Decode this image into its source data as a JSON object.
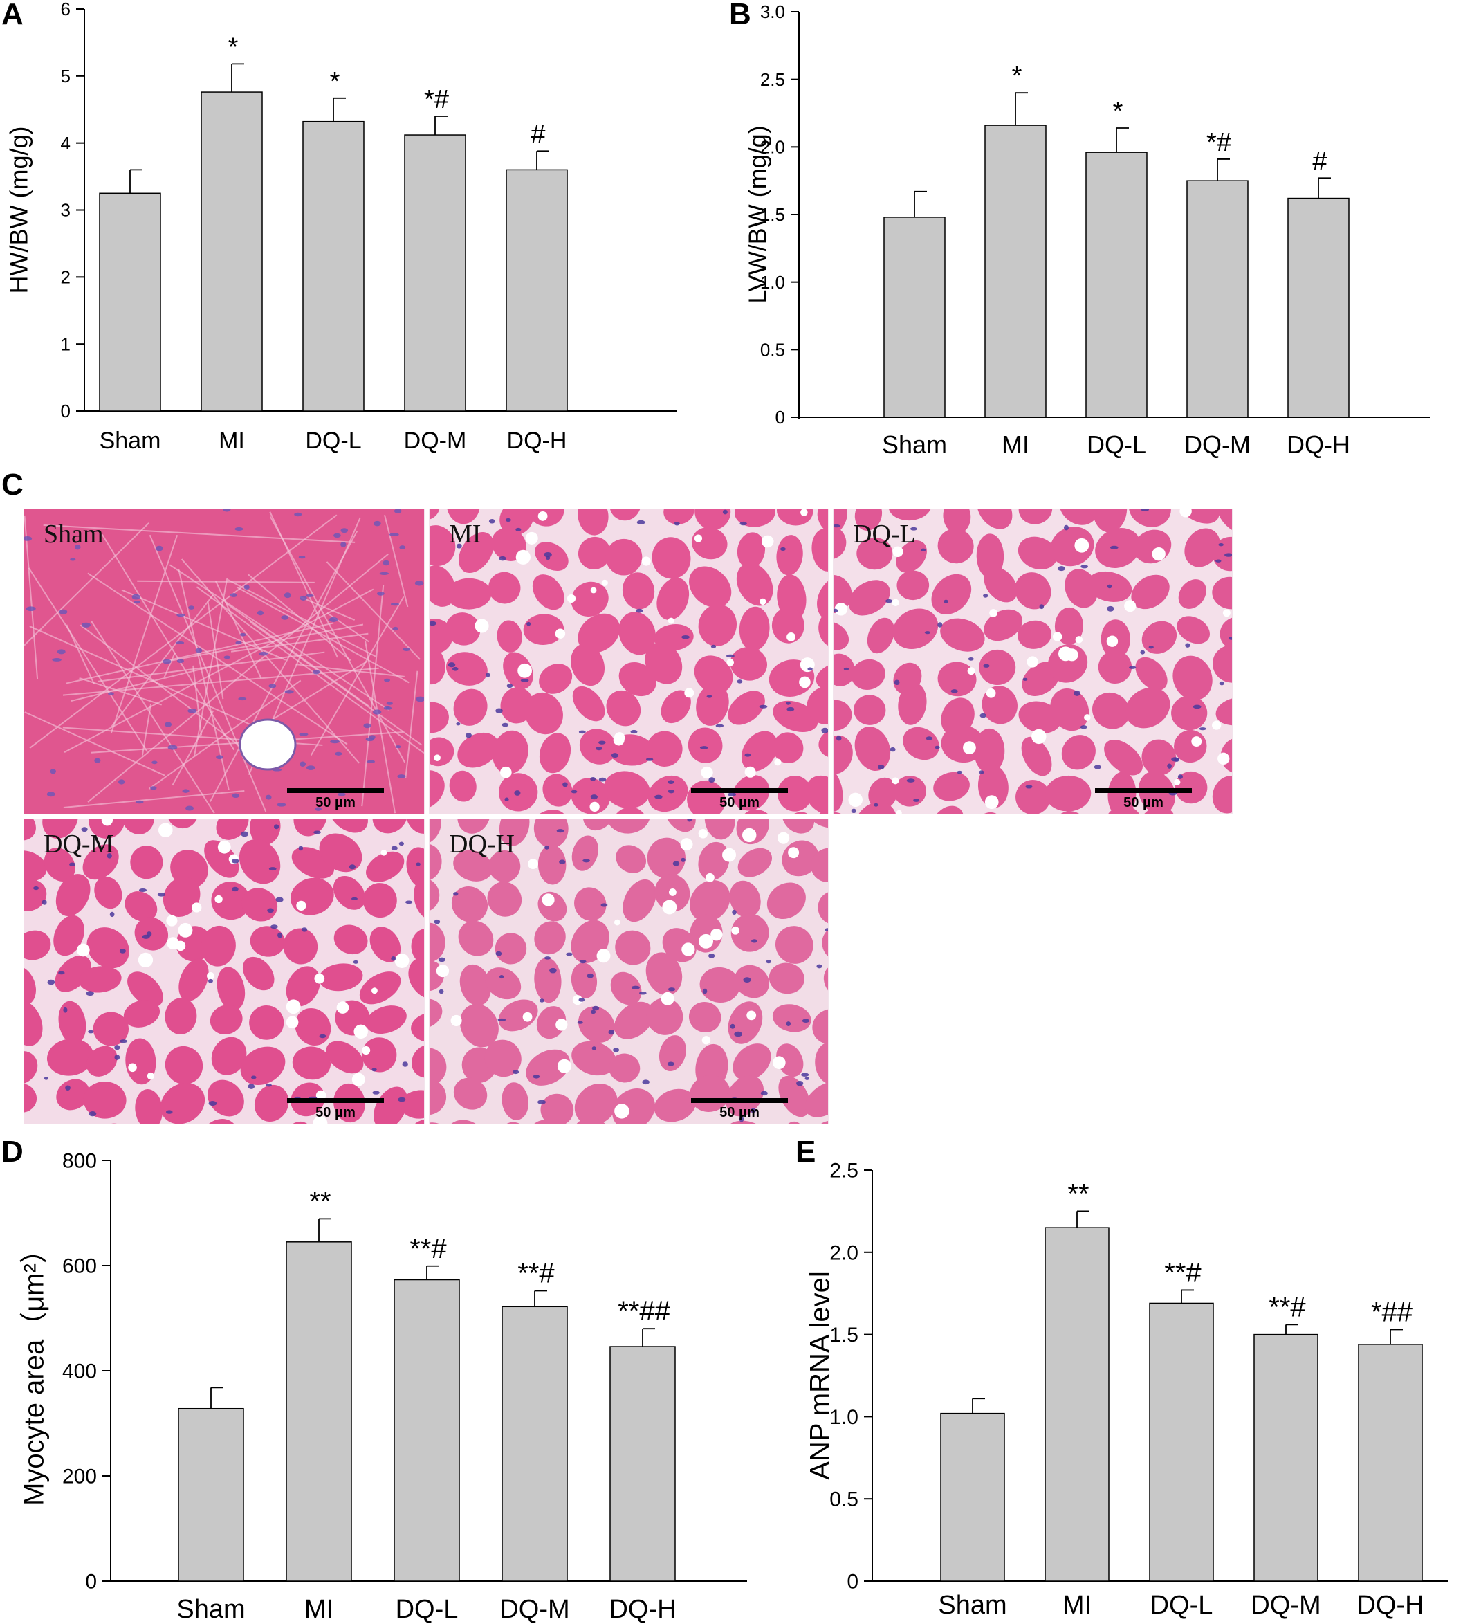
{
  "panels": {
    "A": {
      "letter": "A"
    },
    "B": {
      "letter": "B"
    },
    "C": {
      "letter": "C"
    },
    "D": {
      "letter": "D"
    },
    "E": {
      "letter": "E"
    }
  },
  "chart_data": [
    {
      "id": "A",
      "type": "bar",
      "categories": [
        "Sham",
        "MI",
        "DQ-L",
        "DQ-M",
        "DQ-H"
      ],
      "values": [
        3.25,
        4.76,
        4.32,
        4.12,
        3.6
      ],
      "errors": [
        0.35,
        0.42,
        0.35,
        0.28,
        0.28
      ],
      "annotations": [
        "",
        "*",
        "*",
        "*#",
        "#"
      ],
      "ylabel": "HW/BW (mg/g)",
      "ylim": [
        0,
        6
      ],
      "yticks": [
        "0",
        "1",
        "2",
        "3",
        "4",
        "5",
        "6"
      ],
      "bar_color": "#c8c8c8"
    },
    {
      "id": "B",
      "type": "bar",
      "categories": [
        "Sham",
        "MI",
        "DQ-L",
        "DQ-M",
        "DQ-H"
      ],
      "values": [
        1.48,
        2.16,
        1.96,
        1.75,
        1.62
      ],
      "errors": [
        0.19,
        0.24,
        0.18,
        0.16,
        0.15
      ],
      "annotations": [
        "",
        "*",
        "*",
        "*#",
        "#"
      ],
      "ylabel": "LVW/BW (mg/g)",
      "ylim": [
        0,
        3.0
      ],
      "yticks": [
        "0",
        "0.5",
        "1.0",
        "1.5",
        "2.0",
        "2.5",
        "3.0"
      ],
      "bar_color": "#c8c8c8"
    },
    {
      "id": "D",
      "type": "bar",
      "categories": [
        "Sham",
        "MI",
        "DQ-L",
        "DQ-M",
        "DQ-H"
      ],
      "values": [
        328,
        645,
        573,
        522,
        446
      ],
      "errors": [
        40,
        44,
        26,
        30,
        34
      ],
      "annotations": [
        "",
        "**",
        "**#",
        "**#",
        "**##"
      ],
      "ylabel": "Myocyte area（μm²）",
      "ylim": [
        0,
        800
      ],
      "yticks": [
        "0",
        "200",
        "400",
        "600",
        "800"
      ],
      "bar_color": "#c8c8c8"
    },
    {
      "id": "E",
      "type": "bar",
      "categories": [
        "Sham",
        "MI",
        "DQ-L",
        "DQ-M",
        "DQ-H"
      ],
      "values": [
        1.02,
        2.15,
        1.69,
        1.5,
        1.44
      ],
      "errors": [
        0.09,
        0.1,
        0.08,
        0.06,
        0.09
      ],
      "annotations": [
        "",
        "**",
        "**#",
        "**#",
        "*##"
      ],
      "ylabel": "ANP mRNA level",
      "ylim": [
        0,
        2.5
      ],
      "yticks": [
        "0",
        "0.5",
        "1.0",
        "1.5",
        "2.0",
        "2.5"
      ],
      "bar_color": "#c8c8c8"
    }
  ],
  "micrographs": [
    {
      "label": "Sham",
      "scale": "50 μm"
    },
    {
      "label": "MI",
      "scale": "50 μm"
    },
    {
      "label": "DQ-L",
      "scale": "50 μm"
    },
    {
      "label": "DQ-M",
      "scale": "50 μm"
    },
    {
      "label": "DQ-H",
      "scale": "50 μm"
    }
  ]
}
